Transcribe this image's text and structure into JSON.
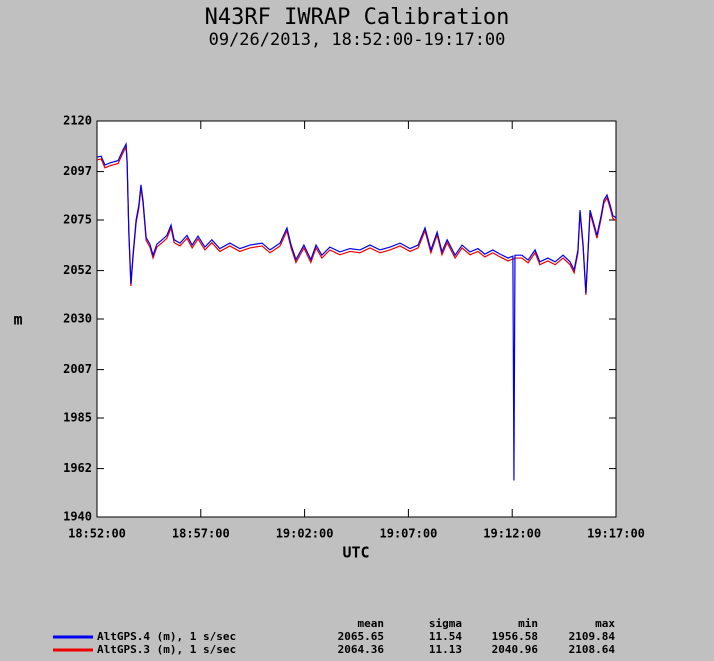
{
  "chart_data": {
    "type": "line",
    "title": "N43RF IWRAP Calibration",
    "subtitle": "09/26/2013, 18:52:00-19:17:00",
    "xlabel": "UTC",
    "ylabel": "m",
    "xlim": [
      "18:52:00",
      "19:17:00"
    ],
    "xticks": [
      "18:52:00",
      "18:57:00",
      "19:02:00",
      "19:07:00",
      "19:12:00",
      "19:17:00"
    ],
    "ylim": [
      1940,
      2120
    ],
    "yticks": [
      1940,
      1962,
      1985,
      2007,
      2030,
      2052,
      2075,
      2097,
      2120
    ],
    "grid": false,
    "stats_columns": [
      "mean",
      "sigma",
      "min",
      "max"
    ],
    "x": [
      "18:52:00",
      "18:52:12",
      "18:52:23",
      "18:52:38",
      "18:53:01",
      "18:53:15",
      "18:53:24",
      "18:53:27",
      "18:53:32",
      "18:53:38",
      "18:53:44",
      "18:53:53",
      "18:54:01",
      "18:54:07",
      "18:54:13",
      "18:54:22",
      "18:54:33",
      "18:54:42",
      "18:54:53",
      "18:55:08",
      "18:55:22",
      "18:55:34",
      "18:55:43",
      "18:56:00",
      "18:56:20",
      "18:56:35",
      "18:56:52",
      "18:57:12",
      "18:57:32",
      "18:57:55",
      "18:58:24",
      "18:58:53",
      "18:59:22",
      "18:59:57",
      "19:00:20",
      "19:00:49",
      "19:01:09",
      "19:01:21",
      "19:01:35",
      "19:01:58",
      "19:02:18",
      "19:02:33",
      "19:02:50",
      "19:03:13",
      "19:03:42",
      "19:04:11",
      "19:04:40",
      "19:05:09",
      "19:05:38",
      "19:06:07",
      "19:06:36",
      "19:07:05",
      "19:07:28",
      "19:07:48",
      "19:08:05",
      "19:08:23",
      "19:08:37",
      "19:08:52",
      "19:09:15",
      "19:09:35",
      "19:09:58",
      "19:10:21",
      "19:10:41",
      "19:11:04",
      "19:11:25",
      "19:11:48",
      "19:12:02",
      "19:12:05",
      "19:12:08",
      "19:12:28",
      "19:12:46",
      "19:13:06",
      "19:13:20",
      "19:13:43",
      "19:14:04",
      "19:14:27",
      "19:14:47",
      "19:14:59",
      "19:15:10",
      "19:15:16",
      "19:15:25",
      "19:15:33",
      "19:15:45",
      "19:15:53",
      "19:16:05",
      "19:16:17",
      "19:16:25",
      "19:16:34",
      "19:16:43",
      "19:16:51",
      "19:17:00"
    ],
    "series": [
      {
        "name": "AltGPS.4 (m), 1 s/sec",
        "color": "#0000ee",
        "stats": [
          2065.65,
          11.54,
          1956.58,
          2109.84
        ],
        "values": [
          2103.6,
          2104,
          2100,
          2101,
          2102,
          2106.8,
          2109.5,
          2102,
          2070,
          2046,
          2059,
          2075,
          2081.8,
          2091,
          2084,
          2067,
          2064,
          2059,
          2064,
          2066,
          2068,
          2072.7,
          2066,
          2064.5,
          2068,
          2063.6,
          2067.7,
          2062.7,
          2066,
          2062,
          2064.5,
          2062,
          2063.6,
          2064.5,
          2061.4,
          2064.5,
          2071.4,
          2063.6,
          2057,
          2063.6,
          2057,
          2063.6,
          2059,
          2062.7,
          2060.5,
          2062,
          2061.4,
          2063.6,
          2061.4,
          2062.7,
          2064.5,
          2062,
          2063.6,
          2071.4,
          2061.4,
          2069.5,
          2060.5,
          2066,
          2059,
          2063.6,
          2060.5,
          2062,
          2059.5,
          2061.4,
          2059.5,
          2057.7,
          2058.6,
          1956.6,
          2059,
          2059,
          2056.8,
          2061.4,
          2056,
          2057.7,
          2056,
          2059,
          2056,
          2052.3,
          2061.4,
          2079.5,
          2063.6,
          2041.8,
          2079.5,
          2075,
          2068,
          2077,
          2084,
          2086.4,
          2081.8,
          2077,
          2076
        ]
      },
      {
        "name": "AltGPS.3 (m), 1 s/sec",
        "color": "#ee0000",
        "stats": [
          2064.36,
          11.13,
          2040.96,
          2108.64
        ],
        "values": [
          2102.3,
          2102.7,
          2098.7,
          2099.7,
          2100.7,
          2105.5,
          2108.2,
          2100.7,
          2068.7,
          2045,
          2057.7,
          2073.7,
          2080.5,
          2089.7,
          2082.7,
          2065.7,
          2062.7,
          2057.7,
          2062.7,
          2064.7,
          2066.7,
          2071.4,
          2064.7,
          2063.2,
          2066.7,
          2062.3,
          2066.4,
          2061.4,
          2064.7,
          2060.7,
          2063.2,
          2060.7,
          2062.3,
          2063.2,
          2060.1,
          2063.2,
          2070.1,
          2062.3,
          2055.7,
          2062.3,
          2055.7,
          2062.3,
          2057.7,
          2061.4,
          2059.2,
          2060.7,
          2060.1,
          2062.3,
          2060.1,
          2061.4,
          2063.2,
          2060.7,
          2062.3,
          2070.1,
          2060.1,
          2068.2,
          2059.2,
          2064.7,
          2057.7,
          2062.3,
          2059.2,
          2060.7,
          2058.2,
          2060.1,
          2058.2,
          2056.4,
          2057.3,
          2057.3,
          2057.7,
          2057.7,
          2055.5,
          2060.1,
          2054.7,
          2056.4,
          2054.7,
          2057.7,
          2054.7,
          2051,
          2060.1,
          2078.2,
          2062.3,
          2041,
          2078.2,
          2073.7,
          2066.7,
          2075.7,
          2082.7,
          2085.1,
          2080.5,
          2075.7,
          2074.7
        ]
      }
    ]
  }
}
